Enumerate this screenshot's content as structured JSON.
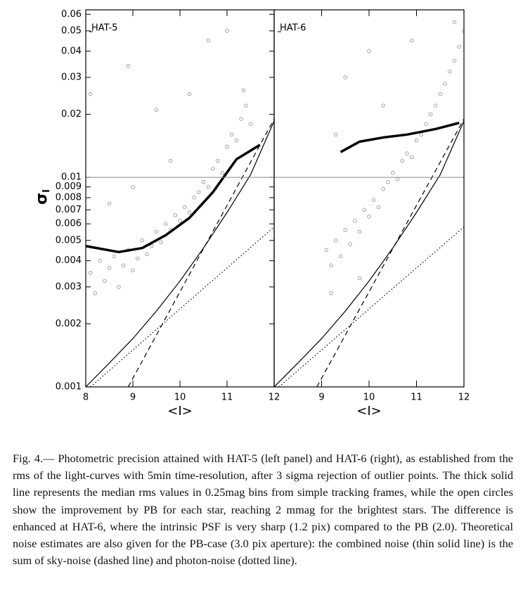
{
  "chart_data": [
    {
      "type": "scatter",
      "panel_label": "HAT-5",
      "xlabel": "<I>",
      "ylabel": "σ",
      "ylabel_sub": "I",
      "xlim": [
        8,
        12
      ],
      "ylim": [
        0.001,
        0.063
      ],
      "ylog": true,
      "xticks": [
        8,
        9,
        10,
        11,
        12
      ],
      "yticks": [
        0.001,
        0.002,
        0.003,
        0.004,
        0.005,
        0.006,
        0.007,
        0.008,
        0.009,
        0.01,
        0.02,
        0.03,
        0.04,
        0.05,
        0.06
      ],
      "hline": 0.01,
      "series": [
        {
          "type": "scatter",
          "color": "#999999",
          "x": [
            8.1,
            8.2,
            8.3,
            8.4,
            8.5,
            8.6,
            8.7,
            8.8,
            8.9,
            9.0,
            9.1,
            9.2,
            9.3,
            9.4,
            9.5,
            9.6,
            9.7,
            9.8,
            9.9,
            10.0,
            10.1,
            10.2,
            10.3,
            10.4,
            10.5,
            10.6,
            10.7,
            10.8,
            10.9,
            11.0,
            11.1,
            11.2,
            11.3,
            11.4,
            11.5,
            11.35,
            9.5,
            8.9,
            10.2,
            8.1,
            10.6,
            11.0,
            9.0,
            8.5,
            9.8
          ],
          "values": [
            0.0035,
            0.0028,
            0.004,
            0.0032,
            0.0037,
            0.0042,
            0.003,
            0.0038,
            0.0045,
            0.0036,
            0.0041,
            0.005,
            0.0043,
            0.0047,
            0.0055,
            0.0049,
            0.006,
            0.0056,
            0.0066,
            0.0062,
            0.0072,
            0.0068,
            0.008,
            0.0085,
            0.0095,
            0.009,
            0.011,
            0.012,
            0.0105,
            0.014,
            0.016,
            0.015,
            0.019,
            0.022,
            0.018,
            0.026,
            0.021,
            0.034,
            0.025,
            0.025,
            0.045,
            0.05,
            0.009,
            0.0075,
            0.012
          ]
        },
        {
          "type": "line",
          "style": "thick",
          "color": "#000000",
          "x": [
            8,
            8.7,
            9.2,
            9.7,
            10.2,
            10.7,
            11.2,
            11.7
          ],
          "values": [
            0.0047,
            0.0044,
            0.0046,
            0.0053,
            0.0064,
            0.0085,
            0.0122,
            0.0143
          ]
        },
        {
          "type": "line",
          "style": "solid",
          "color": "#000000",
          "x": [
            8,
            8.5,
            9,
            9.5,
            10,
            10.5,
            11,
            11.5,
            12
          ],
          "values": [
            0.001,
            0.0013,
            0.0017,
            0.0023,
            0.0032,
            0.0046,
            0.0068,
            0.0103,
            0.0186
          ]
        },
        {
          "type": "line",
          "style": "dashed",
          "color": "#000000",
          "x": [
            8.9,
            12
          ],
          "values": [
            0.001,
            0.019
          ]
        },
        {
          "type": "line",
          "style": "dotted",
          "color": "#000000",
          "x": [
            8.1,
            12
          ],
          "values": [
            0.001,
            0.0058
          ]
        }
      ]
    },
    {
      "type": "scatter",
      "panel_label": "HAT-6",
      "xlabel": "<I>",
      "xlim": [
        8,
        12
      ],
      "ylim": [
        0.001,
        0.063
      ],
      "ylog": true,
      "xticks": [
        9,
        10,
        11,
        12
      ],
      "hline": 0.01,
      "series": [
        {
          "type": "scatter",
          "color": "#999999",
          "x": [
            9.1,
            9.2,
            9.3,
            9.4,
            9.5,
            9.6,
            9.7,
            9.8,
            9.9,
            10.0,
            10.1,
            10.2,
            10.3,
            10.4,
            10.5,
            10.6,
            10.7,
            10.8,
            10.9,
            11.0,
            11.1,
            11.2,
            11.3,
            11.4,
            11.5,
            11.6,
            11.7,
            11.8,
            11.9,
            12.0,
            11.8,
            9.5,
            10.0,
            10.3,
            9.3,
            10.9,
            9.2,
            9.8
          ],
          "values": [
            0.0045,
            0.0038,
            0.005,
            0.0042,
            0.0056,
            0.0048,
            0.0062,
            0.0055,
            0.007,
            0.0065,
            0.0078,
            0.0072,
            0.0088,
            0.0095,
            0.0105,
            0.0098,
            0.012,
            0.013,
            0.0125,
            0.015,
            0.016,
            0.018,
            0.02,
            0.022,
            0.025,
            0.028,
            0.032,
            0.036,
            0.042,
            0.05,
            0.055,
            0.03,
            0.04,
            0.022,
            0.016,
            0.045,
            0.0028,
            0.0033
          ]
        },
        {
          "type": "line",
          "style": "thick",
          "color": "#000000",
          "x": [
            9.4,
            9.8,
            10.3,
            10.8,
            11.4,
            11.9
          ],
          "values": [
            0.0132,
            0.0148,
            0.0155,
            0.016,
            0.017,
            0.0182
          ]
        },
        {
          "type": "line",
          "style": "solid",
          "color": "#000000",
          "x": [
            8,
            8.5,
            9,
            9.5,
            10,
            10.5,
            11,
            11.5,
            12
          ],
          "values": [
            0.001,
            0.0013,
            0.0017,
            0.0023,
            0.0032,
            0.0046,
            0.0068,
            0.0103,
            0.0186
          ]
        },
        {
          "type": "line",
          "style": "dashed",
          "color": "#000000",
          "x": [
            8.9,
            12
          ],
          "values": [
            0.001,
            0.019
          ]
        },
        {
          "type": "line",
          "style": "dotted",
          "color": "#000000",
          "x": [
            8.1,
            12
          ],
          "values": [
            0.001,
            0.0058
          ]
        }
      ]
    }
  ],
  "caption": {
    "label": "Fig. 4.—",
    "text": "Photometric precision attained with HAT-5 (left panel) and HAT-6 (right), as established from the rms of the light-curves with 5min time-resolution, after 3 sigma rejection of outlier points. The thick solid line represents the median rms values in 0.25mag bins from simple tracking frames, while the open circles show the improvement by PB for each star, reaching 2 mmag for the brightest stars. The difference is enhanced at HAT-6, where the intrinsic PSF is very sharp (1.2 pix) compared to the PB (2.0). Theoretical noise estimates are also given for the PB-case (3.0 pix aperture): the combined noise (thin solid line) is the sum of sky-noise (dashed line) and photon-noise (dotted line)."
  }
}
